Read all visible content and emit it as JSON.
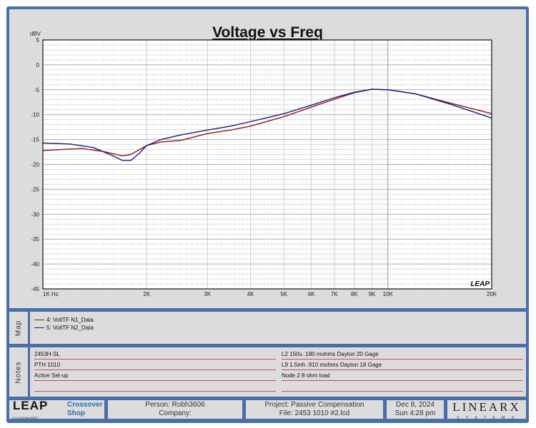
{
  "chart_data": {
    "type": "line",
    "title": "Voltage vs Freq",
    "ylabel": "dBV",
    "xscale": "log",
    "xlim": [
      1000,
      20000
    ],
    "ylim": [
      -45,
      5
    ],
    "grid": true,
    "xticks": [
      {
        "v": 1000,
        "l": "1K Hz"
      },
      {
        "v": 2000,
        "l": "2K"
      },
      {
        "v": 3000,
        "l": "3K"
      },
      {
        "v": 4000,
        "l": "4K"
      },
      {
        "v": 5000,
        "l": "5K"
      },
      {
        "v": 6000,
        "l": "6K"
      },
      {
        "v": 7000,
        "l": "7K"
      },
      {
        "v": 8000,
        "l": "8K"
      },
      {
        "v": 9000,
        "l": "9K"
      },
      {
        "v": 10000,
        "l": "10K"
      },
      {
        "v": 20000,
        "l": "20K"
      }
    ],
    "yticks": [
      "5",
      "0",
      "-5",
      "-10",
      "-15",
      "-20",
      "-25",
      "-30",
      "-35",
      "-40",
      "-45"
    ],
    "legend_placement": "below (Map panel)",
    "series": [
      {
        "name": "4: VoltTF N1_Data",
        "color": "#8b1a1a",
        "x": [
          1000,
          1200,
          1300,
          1500,
          1700,
          1800,
          2000,
          2200,
          2500,
          3000,
          3500,
          4000,
          5000,
          6000,
          7000,
          8000,
          9000,
          10000,
          12000,
          15000,
          18000,
          20000
        ],
        "y": [
          -17.2,
          -16.9,
          -16.8,
          -17.4,
          -18.3,
          -18.0,
          -16.2,
          -15.5,
          -15.2,
          -13.8,
          -13.1,
          -12.3,
          -10.4,
          -8.5,
          -6.9,
          -5.6,
          -4.9,
          -5.0,
          -5.8,
          -7.6,
          -9.0,
          -9.8
        ]
      },
      {
        "name": "5: VoltTF N2_Data",
        "color": "#1a1a7a",
        "x": [
          1000,
          1200,
          1400,
          1600,
          1700,
          1800,
          1900,
          2000,
          2200,
          2500,
          3000,
          3500,
          4000,
          5000,
          6000,
          7000,
          8000,
          9000,
          10000,
          12000,
          15000,
          18000,
          20000
        ],
        "y": [
          -15.7,
          -15.9,
          -16.6,
          -18.3,
          -19.2,
          -19.2,
          -17.8,
          -16.2,
          -15.0,
          -14.1,
          -13.1,
          -12.3,
          -11.4,
          -9.8,
          -8.1,
          -6.6,
          -5.5,
          -4.9,
          -5.0,
          -5.8,
          -7.8,
          -9.6,
          -10.7
        ]
      }
    ]
  },
  "watermark": "LEAP",
  "map": {
    "label": "Map"
  },
  "notes": {
    "label": "Notes",
    "left": [
      "2453H-SL",
      "PTH 1010",
      "Active Set-up",
      ""
    ],
    "right": [
      "L2 150u .180 mohms  Dayton 20 Gage",
      "L9 1.5mh .910 mohms  Dayton 18 Gage",
      "Node 2 8 ohm load",
      ""
    ]
  },
  "footer": {
    "logo": "LEAP",
    "version": "5.2.0.500  April/2007",
    "app": [
      "Crossover",
      "Shop"
    ],
    "person": "Person: Robh3606",
    "company": "Company:",
    "project": "Project: Passive Compensation",
    "file": "File: 2453 1010 #2.lcd",
    "date": "Dec  8, 2024",
    "time": "Sun  4:28 pm",
    "brand": "LINEARX",
    "brand_sub": "S Y S T E M S"
  }
}
